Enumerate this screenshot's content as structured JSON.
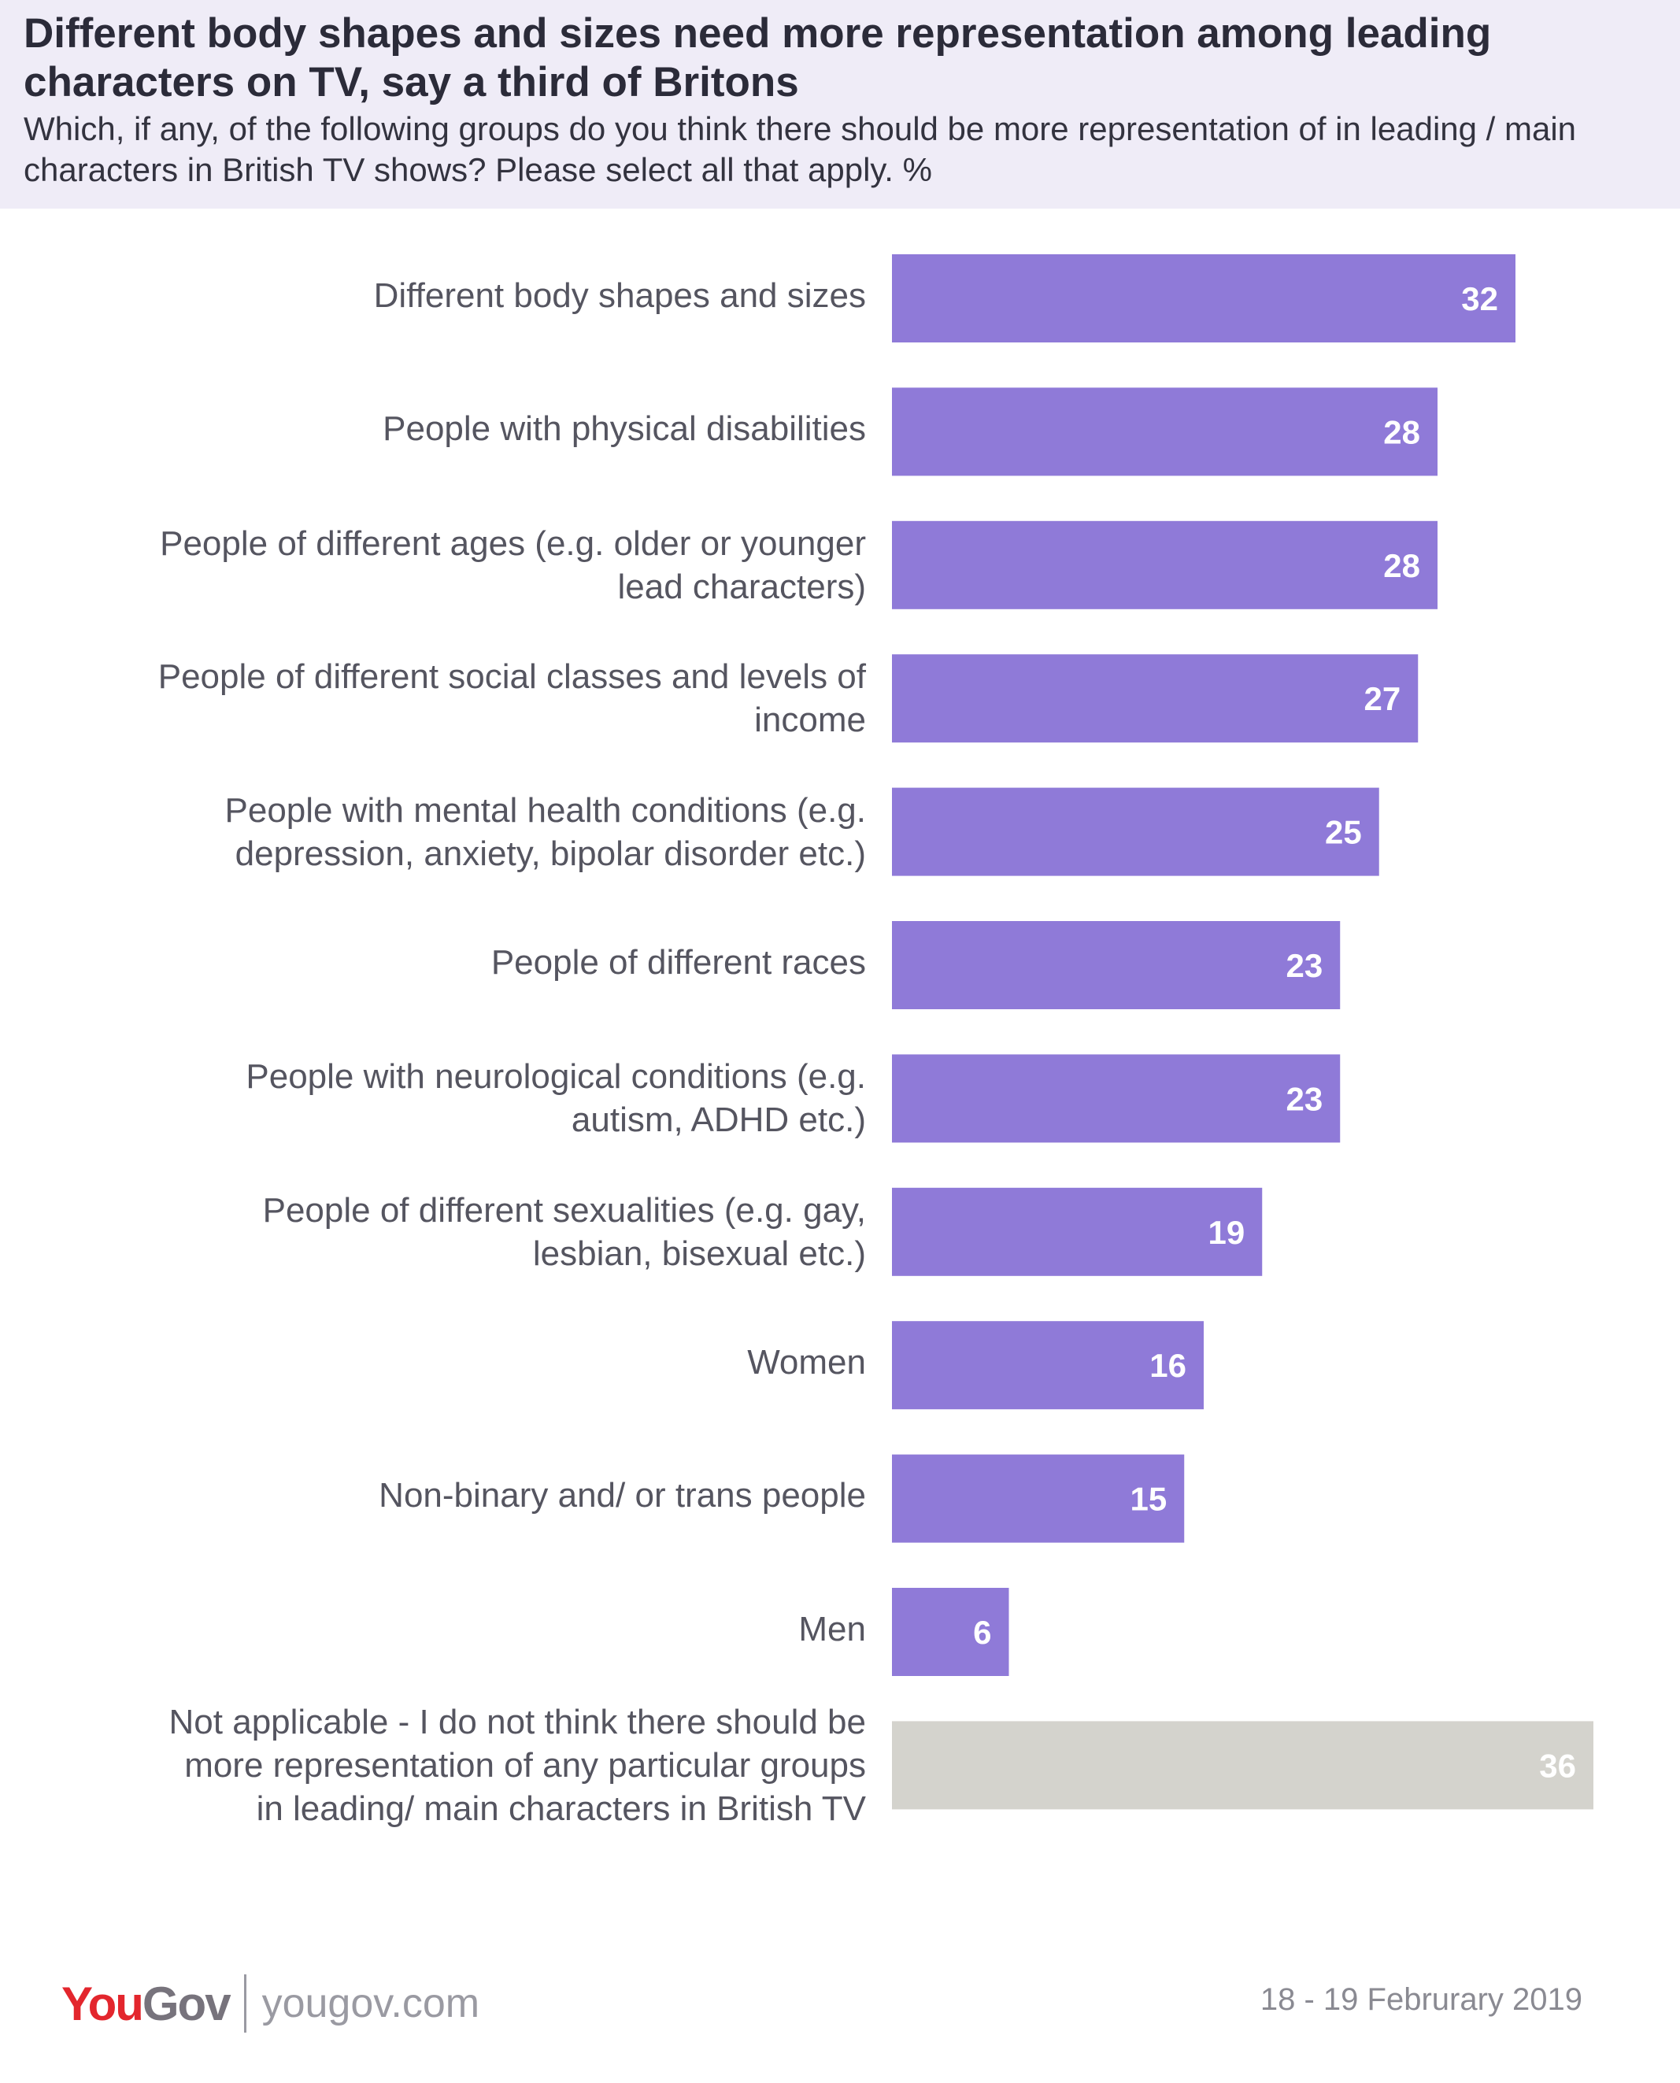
{
  "header": {
    "title": "Different body shapes and sizes need more representation among leading characters on TV, say a third of Britons",
    "subtitle": "Which, if any, of the following groups do you think there should be more representation of in leading / main characters in British TV shows? Please select all that apply. %"
  },
  "chart_data": {
    "type": "bar",
    "orientation": "horizontal",
    "title": "Different body shapes and sizes need more representation among leading characters on TV, say a third of Britons",
    "unit": "%",
    "xlim": [
      0,
      40
    ],
    "grid": false,
    "categories": [
      [
        "Different body shapes and sizes"
      ],
      [
        "People with physical disabilities"
      ],
      [
        "People of different ages (e.g. older or younger",
        "lead characters)"
      ],
      [
        "People of different social classes and levels of",
        "income"
      ],
      [
        "People with mental health conditions (e.g.",
        "depression, anxiety, bipolar disorder etc.)"
      ],
      [
        "People of different races"
      ],
      [
        "People with neurological conditions (e.g.",
        "autism, ADHD etc.)"
      ],
      [
        "People of different sexualities (e.g. gay,",
        "lesbian, bisexual etc.)"
      ],
      [
        "Women"
      ],
      [
        "Non-binary and/ or trans people"
      ],
      [
        "Men"
      ],
      [
        "Not applicable - I do not think there should be",
        "more representation of any particular groups",
        "in leading/ main characters in British TV"
      ]
    ],
    "values": [
      32,
      28,
      28,
      27,
      25,
      23,
      23,
      19,
      16,
      15,
      6,
      36
    ],
    "value_labels": [
      "32",
      "28",
      "28",
      "27",
      "25",
      "23",
      "23",
      "19",
      "16",
      "15",
      "6",
      "36"
    ],
    "colors": [
      "#8f7ad8",
      "#8f7ad8",
      "#8f7ad8",
      "#8f7ad8",
      "#8f7ad8",
      "#8f7ad8",
      "#8f7ad8",
      "#8f7ad8",
      "#8f7ad8",
      "#8f7ad8",
      "#8f7ad8",
      "#d4d3cd"
    ],
    "label_color": "#ffffff"
  },
  "footer": {
    "logo_you": "You",
    "logo_gov": "Gov",
    "site": "yougov.com",
    "date": "18 - 19 Februrary 2019"
  }
}
